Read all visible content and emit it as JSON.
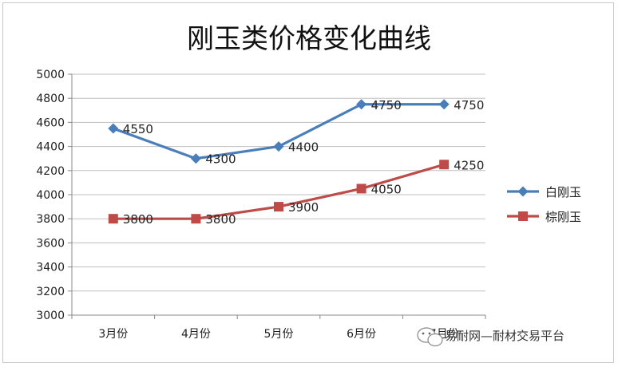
{
  "chart_data": {
    "type": "line",
    "title": "刚玉类价格变化曲线",
    "categories": [
      "3月份",
      "4月份",
      "5月份",
      "6月份",
      "7月份"
    ],
    "series": [
      {
        "name": "白刚玉",
        "values": [
          4550,
          4300,
          4400,
          4750,
          4750
        ],
        "color": "#4a7ebb",
        "marker": "diamond"
      },
      {
        "name": "棕刚玉",
        "values": [
          3800,
          3800,
          3900,
          4050,
          4250
        ],
        "color": "#be4b48",
        "marker": "square"
      }
    ],
    "y_ticks": [
      3000,
      3200,
      3400,
      3600,
      3800,
      4000,
      4200,
      4400,
      4600,
      4800,
      5000
    ],
    "ylim": [
      3000,
      5000
    ],
    "xlabel": "",
    "ylabel": "",
    "grid": true,
    "legend_position": "right",
    "data_labels": true
  },
  "watermark": {
    "text": "易耐网—耐材交易平台",
    "icon": "wechat-icon"
  }
}
